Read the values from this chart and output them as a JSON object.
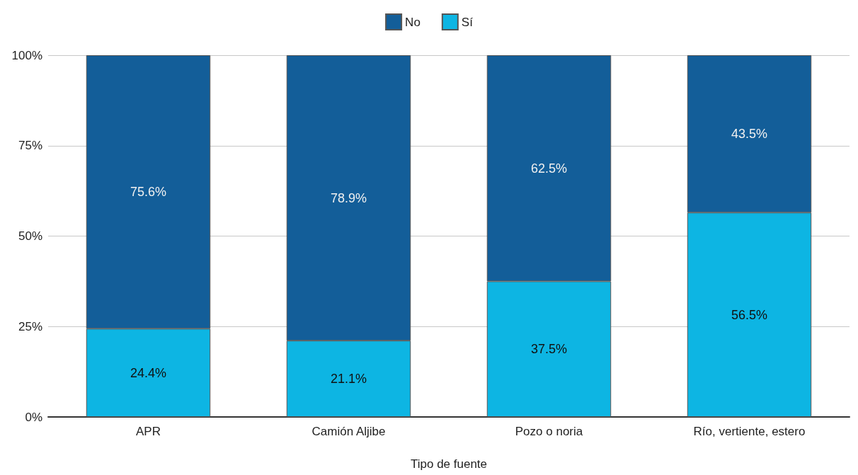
{
  "chart_data": {
    "type": "bar",
    "stacked": true,
    "xlabel": "Tipo de fuente",
    "categories": [
      "APR",
      "Camión Aljibe",
      "Pozo o noria",
      "Río, vertiente, estero"
    ],
    "series": [
      {
        "name": "Sí",
        "color": "#0db5e3",
        "values": [
          24.4,
          21.1,
          37.5,
          56.5
        ],
        "value_labels": [
          "24.4%",
          "21.1%",
          "37.5%",
          "56.5%"
        ]
      },
      {
        "name": "No",
        "color": "#135e99",
        "values": [
          75.6,
          78.9,
          62.5,
          43.5
        ],
        "value_labels": [
          "75.6%",
          "78.9%",
          "62.5%",
          "43.5%"
        ]
      }
    ],
    "ylim": [
      0,
      100
    ],
    "yticks": [
      {
        "value": 0,
        "label": "0%"
      },
      {
        "value": 25,
        "label": "25%"
      },
      {
        "value": 50,
        "label": "50%"
      },
      {
        "value": 75,
        "label": "75%"
      },
      {
        "value": 100,
        "label": "100%"
      }
    ],
    "grid": "y",
    "legend": "top"
  }
}
